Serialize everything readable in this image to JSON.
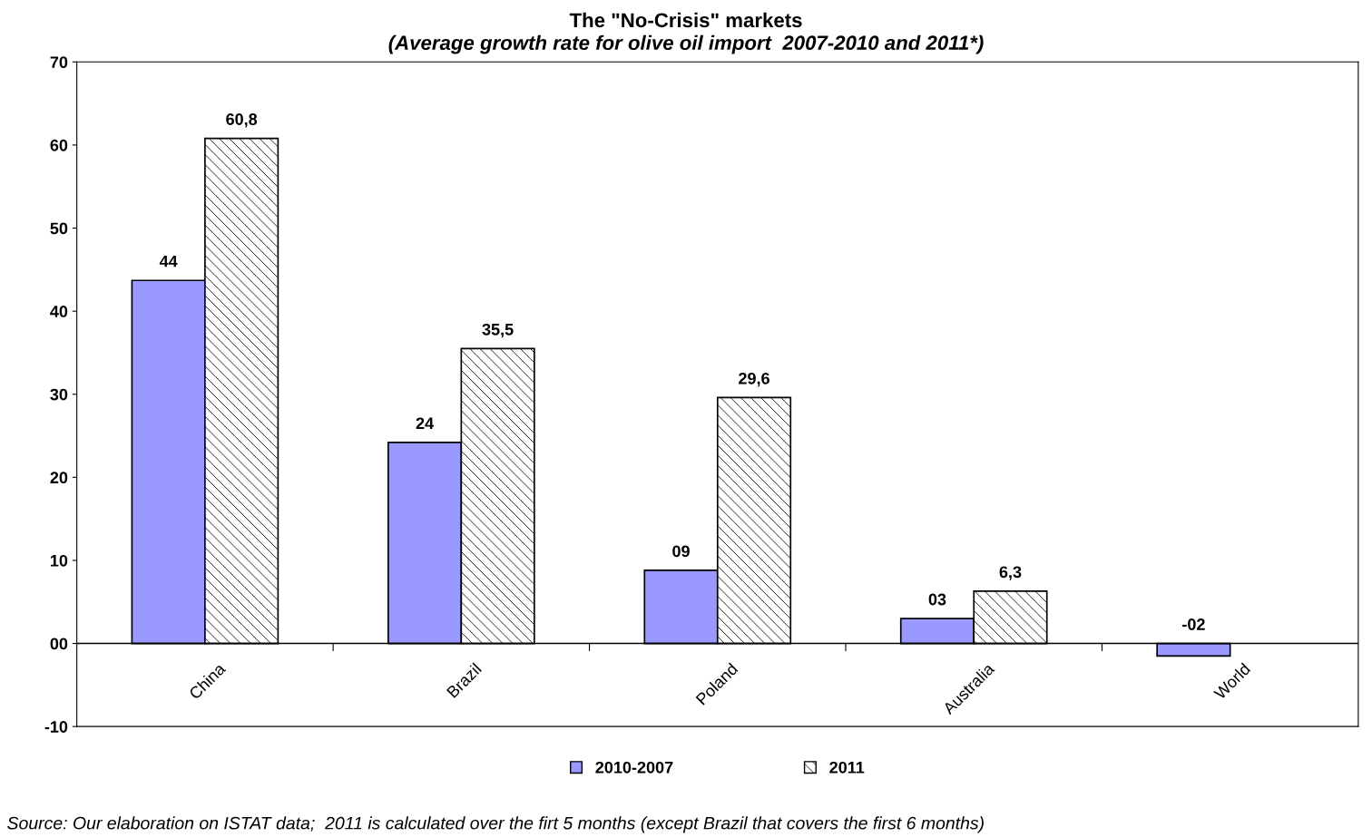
{
  "chart_data": {
    "type": "bar",
    "title": "The \"No-Crisis\" markets",
    "subtitle": "(Average growth rate for olive oil import  2007-2010 and 2011*)",
    "categories": [
      "China",
      "Brazil",
      "Poland",
      "Australia",
      "World"
    ],
    "series": [
      {
        "name": "2010-2007",
        "color": "#9999ff",
        "values": [
          43.7,
          24.2,
          8.8,
          3.0,
          -1.5
        ],
        "value_labels": [
          "44",
          "24",
          "09",
          "03",
          "-02"
        ]
      },
      {
        "name": "2011",
        "color": "#000000",
        "values": [
          60.8,
          35.5,
          29.6,
          6.3,
          null
        ],
        "value_labels": [
          "60,8",
          "35,5",
          "29,6",
          "6,3",
          null
        ]
      }
    ],
    "ylim": [
      -10,
      70
    ],
    "yticks": [
      {
        "value": -10,
        "label": "-10"
      },
      {
        "value": 0,
        "label": "00"
      },
      10,
      20,
      30,
      40,
      50,
      60,
      70
    ],
    "ref_lines": [
      {
        "axis": "y",
        "value": 0,
        "color": "#000000"
      }
    ],
    "grid": false,
    "legend": "bottom",
    "annotations": [
      "Source: Our elaboration on ISTAT data;  2011 is calculated over the firt 5 months (except Brazil that covers the first 6 months)"
    ]
  }
}
